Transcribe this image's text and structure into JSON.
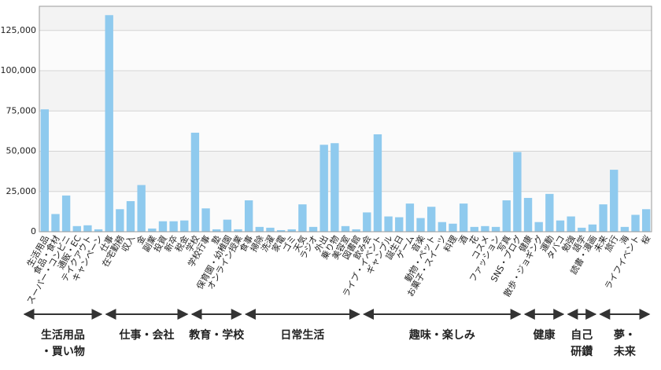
{
  "chart_data": {
    "type": "bar",
    "color": "#8fcaee",
    "grid": true,
    "ylim": [
      0,
      140000
    ],
    "yticks": [
      {
        "value": 0,
        "label": "0"
      },
      {
        "value": 25000,
        "label": "25,000"
      },
      {
        "value": 50000,
        "label": "50,000"
      },
      {
        "value": 75000,
        "label": "75,000"
      },
      {
        "value": 100000,
        "label": "100,000"
      },
      {
        "value": 125000,
        "label": "125,000"
      }
    ],
    "categories": [
      "生活用品",
      "食品・食材",
      "スーパー・コンビニ",
      "通販・EC",
      "テイクアウト",
      "キャンペーン",
      "仕事",
      "在宅勤務",
      "収入",
      "金",
      "副業",
      "投資",
      "新卒",
      "税金",
      "学校",
      "学校行事",
      "塾",
      "保育園・幼稚園",
      "オンライン授業",
      "食事",
      "掃除",
      "洗濯",
      "家電",
      "ゴミ",
      "天気",
      "ラジオ",
      "外出",
      "乗り物",
      "美容室",
      "図書館",
      "飲み会",
      "ライブ・イベント",
      "ギャンブル",
      "誕生日",
      "ゲーム",
      "音楽",
      "動物・ペット",
      "お菓子・スイーツ",
      "料理",
      "酒",
      "花",
      "コスメ",
      "ファッション",
      "写真",
      "SNS・ブログ",
      "健康",
      "散歩・ジョギング",
      "運動",
      "タバコ",
      "勉強",
      "語学",
      "読書・漫画",
      "未来",
      "旅行",
      "海",
      "ライフイベント",
      "桜"
    ],
    "values": [
      76000,
      11000,
      22500,
      3500,
      4000,
      1500,
      134500,
      14000,
      19000,
      29000,
      2000,
      6500,
      6500,
      7000,
      61500,
      14500,
      1500,
      7500,
      1500,
      19500,
      3000,
      2500,
      1000,
      1500,
      17000,
      3000,
      54000,
      55000,
      3500,
      1500,
      12000,
      60500,
      9500,
      9000,
      17500,
      8500,
      15500,
      6000,
      5000,
      17500,
      3000,
      3500,
      3000,
      19500,
      49500,
      21000,
      6000,
      23500,
      7000,
      9500,
      2500,
      4500,
      17000,
      38500,
      3000,
      10500,
      14000
    ],
    "groups": [
      [
        "生活用品",
        "・買い物"
      ],
      [
        "仕事・会社"
      ],
      [
        "教育・学校"
      ],
      [
        "日常生活"
      ],
      [
        "趣味・楽しみ"
      ],
      [
        "健康"
      ],
      [
        "自己",
        "研鑽"
      ],
      [
        "夢・",
        "未来"
      ]
    ]
  }
}
